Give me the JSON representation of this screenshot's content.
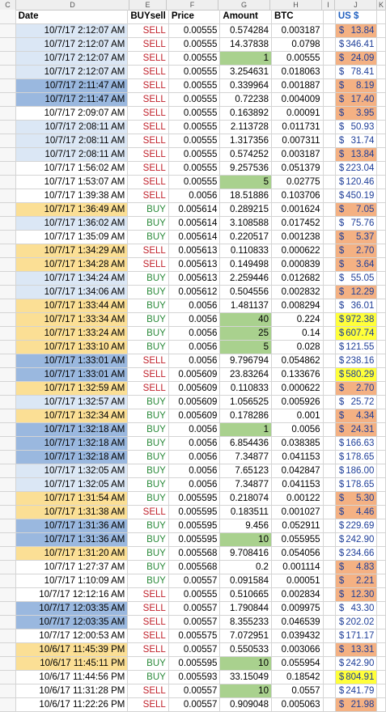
{
  "columns": [
    "C",
    "D",
    "E",
    "F",
    "G",
    "H",
    "I",
    "J",
    "K"
  ],
  "headers": {
    "date": "Date",
    "side": "BUYsell",
    "price": "Price",
    "amount": "Amount",
    "btc": "BTC",
    "usd": "US $"
  },
  "currency_symbol": "$",
  "fills": {
    "date_light_blue": "#dbe7f5",
    "date_medium_blue": "#9ab8df",
    "date_yellow": "#fbdf95",
    "amount_green": "#a9d18e",
    "usd_orange": "#f4b183",
    "usd_yellow": "#ffff3a",
    "sell_text": "#c0202a",
    "buy_text": "#2a8a3a"
  },
  "rows": [
    {
      "date": "10/7/17 2:12:07 AM",
      "side": "SELL",
      "price": "0.00555",
      "amount": "0.574284",
      "btc": "0.003187",
      "usd": "13.84",
      "dc": "L",
      "ac": "",
      "uc": "O"
    },
    {
      "date": "10/7/17 2:12:07 AM",
      "side": "SELL",
      "price": "0.00555",
      "amount": "14.37838",
      "btc": "0.0798",
      "usd": "346.41",
      "dc": "L",
      "ac": "",
      "uc": ""
    },
    {
      "date": "10/7/17 2:12:07 AM",
      "side": "SELL",
      "price": "0.00555",
      "amount": "1",
      "btc": "0.00555",
      "usd": "24.09",
      "dc": "L",
      "ac": "G",
      "uc": "O"
    },
    {
      "date": "10/7/17 2:12:07 AM",
      "side": "SELL",
      "price": "0.00555",
      "amount": "3.254631",
      "btc": "0.018063",
      "usd": "78.41",
      "dc": "L",
      "ac": "",
      "uc": ""
    },
    {
      "date": "10/7/17 2:11:47 AM",
      "side": "SELL",
      "price": "0.00555",
      "amount": "0.339964",
      "btc": "0.001887",
      "usd": "8.19",
      "dc": "M",
      "ac": "",
      "uc": "O"
    },
    {
      "date": "10/7/17 2:11:47 AM",
      "side": "SELL",
      "price": "0.00555",
      "amount": "0.72238",
      "btc": "0.004009",
      "usd": "17.40",
      "dc": "M",
      "ac": "",
      "uc": "O"
    },
    {
      "date": "10/7/17 2:09:07 AM",
      "side": "SELL",
      "price": "0.00555",
      "amount": "0.163892",
      "btc": "0.00091",
      "usd": "3.95",
      "dc": "",
      "ac": "",
      "uc": "O"
    },
    {
      "date": "10/7/17 2:08:11 AM",
      "side": "SELL",
      "price": "0.00555",
      "amount": "2.113728",
      "btc": "0.011731",
      "usd": "50.93",
      "dc": "L",
      "ac": "",
      "uc": ""
    },
    {
      "date": "10/7/17 2:08:11 AM",
      "side": "SELL",
      "price": "0.00555",
      "amount": "1.317356",
      "btc": "0.007311",
      "usd": "31.74",
      "dc": "L",
      "ac": "",
      "uc": ""
    },
    {
      "date": "10/7/17 2:08:11 AM",
      "side": "SELL",
      "price": "0.00555",
      "amount": "0.574252",
      "btc": "0.003187",
      "usd": "13.84",
      "dc": "L",
      "ac": "",
      "uc": "O"
    },
    {
      "date": "10/7/17 1:56:02 AM",
      "side": "SELL",
      "price": "0.00555",
      "amount": "9.257536",
      "btc": "0.051379",
      "usd": "223.04",
      "dc": "",
      "ac": "",
      "uc": ""
    },
    {
      "date": "10/7/17 1:53:07 AM",
      "side": "SELL",
      "price": "0.00555",
      "amount": "5",
      "btc": "0.02775",
      "usd": "120.46",
      "dc": "",
      "ac": "G",
      "uc": ""
    },
    {
      "date": "10/7/17 1:39:38 AM",
      "side": "SELL",
      "price": "0.0056",
      "amount": "18.51886",
      "btc": "0.103706",
      "usd": "450.19",
      "dc": "",
      "ac": "",
      "uc": ""
    },
    {
      "date": "10/7/17 1:36:49 AM",
      "side": "BUY",
      "price": "0.005614",
      "amount": "0.289215",
      "btc": "0.001624",
      "usd": "7.05",
      "dc": "Y",
      "ac": "",
      "uc": "O"
    },
    {
      "date": "10/7/17 1:36:02 AM",
      "side": "BUY",
      "price": "0.005614",
      "amount": "3.108588",
      "btc": "0.017452",
      "usd": "75.76",
      "dc": "L",
      "ac": "",
      "uc": ""
    },
    {
      "date": "10/7/17 1:35:09 AM",
      "side": "BUY",
      "price": "0.005614",
      "amount": "0.220517",
      "btc": "0.001238",
      "usd": "5.37",
      "dc": "",
      "ac": "",
      "uc": "O"
    },
    {
      "date": "10/7/17 1:34:29 AM",
      "side": "SELL",
      "price": "0.005613",
      "amount": "0.110833",
      "btc": "0.000622",
      "usd": "2.70",
      "dc": "Y",
      "ac": "",
      "uc": "O"
    },
    {
      "date": "10/7/17 1:34:28 AM",
      "side": "SELL",
      "price": "0.005613",
      "amount": "0.149498",
      "btc": "0.000839",
      "usd": "3.64",
      "dc": "Y",
      "ac": "",
      "uc": "O"
    },
    {
      "date": "10/7/17 1:34:24 AM",
      "side": "BUY",
      "price": "0.005613",
      "amount": "2.259446",
      "btc": "0.012682",
      "usd": "55.05",
      "dc": "L",
      "ac": "",
      "uc": ""
    },
    {
      "date": "10/7/17 1:34:06 AM",
      "side": "BUY",
      "price": "0.005612",
      "amount": "0.504556",
      "btc": "0.002832",
      "usd": "12.29",
      "dc": "L",
      "ac": "",
      "uc": "O"
    },
    {
      "date": "10/7/17 1:33:44 AM",
      "side": "BUY",
      "price": "0.0056",
      "amount": "1.481137",
      "btc": "0.008294",
      "usd": "36.01",
      "dc": "Y",
      "ac": "",
      "uc": ""
    },
    {
      "date": "10/7/17 1:33:34 AM",
      "side": "BUY",
      "price": "0.0056",
      "amount": "40",
      "btc": "0.224",
      "usd": "972.38",
      "dc": "Y",
      "ac": "G",
      "uc": "Y"
    },
    {
      "date": "10/7/17 1:33:24 AM",
      "side": "BUY",
      "price": "0.0056",
      "amount": "25",
      "btc": "0.14",
      "usd": "607.74",
      "dc": "Y",
      "ac": "G",
      "uc": "Y"
    },
    {
      "date": "10/7/17 1:33:10 AM",
      "side": "BUY",
      "price": "0.0056",
      "amount": "5",
      "btc": "0.028",
      "usd": "121.55",
      "dc": "Y",
      "ac": "G",
      "uc": ""
    },
    {
      "date": "10/7/17 1:33:01 AM",
      "side": "SELL",
      "price": "0.0056",
      "amount": "9.796794",
      "btc": "0.054862",
      "usd": "238.16",
      "dc": "M",
      "ac": "",
      "uc": ""
    },
    {
      "date": "10/7/17 1:33:01 AM",
      "side": "SELL",
      "price": "0.005609",
      "amount": "23.83264",
      "btc": "0.133676",
      "usd": "580.29",
      "dc": "M",
      "ac": "",
      "uc": "Y"
    },
    {
      "date": "10/7/17 1:32:59 AM",
      "side": "SELL",
      "price": "0.005609",
      "amount": "0.110833",
      "btc": "0.000622",
      "usd": "2.70",
      "dc": "Y",
      "ac": "",
      "uc": "O"
    },
    {
      "date": "10/7/17 1:32:57 AM",
      "side": "BUY",
      "price": "0.005609",
      "amount": "1.056525",
      "btc": "0.005926",
      "usd": "25.72",
      "dc": "L",
      "ac": "",
      "uc": ""
    },
    {
      "date": "10/7/17 1:32:34 AM",
      "side": "BUY",
      "price": "0.005609",
      "amount": "0.178286",
      "btc": "0.001",
      "usd": "4.34",
      "dc": "Y",
      "ac": "",
      "uc": "O"
    },
    {
      "date": "10/7/17 1:32:18 AM",
      "side": "BUY",
      "price": "0.0056",
      "amount": "1",
      "btc": "0.0056",
      "usd": "24.31",
      "dc": "M",
      "ac": "G",
      "uc": "O"
    },
    {
      "date": "10/7/17 1:32:18 AM",
      "side": "BUY",
      "price": "0.0056",
      "amount": "6.854436",
      "btc": "0.038385",
      "usd": "166.63",
      "dc": "M",
      "ac": "",
      "uc": ""
    },
    {
      "date": "10/7/17 1:32:18 AM",
      "side": "BUY",
      "price": "0.0056",
      "amount": "7.34877",
      "btc": "0.041153",
      "usd": "178.65",
      "dc": "M",
      "ac": "",
      "uc": ""
    },
    {
      "date": "10/7/17 1:32:05 AM",
      "side": "BUY",
      "price": "0.0056",
      "amount": "7.65123",
      "btc": "0.042847",
      "usd": "186.00",
      "dc": "L",
      "ac": "",
      "uc": ""
    },
    {
      "date": "10/7/17 1:32:05 AM",
      "side": "BUY",
      "price": "0.0056",
      "amount": "7.34877",
      "btc": "0.041153",
      "usd": "178.65",
      "dc": "L",
      "ac": "",
      "uc": ""
    },
    {
      "date": "10/7/17 1:31:54 AM",
      "side": "BUY",
      "price": "0.005595",
      "amount": "0.218074",
      "btc": "0.00122",
      "usd": "5.30",
      "dc": "Y",
      "ac": "",
      "uc": "O"
    },
    {
      "date": "10/7/17 1:31:38 AM",
      "side": "SELL",
      "price": "0.005595",
      "amount": "0.183511",
      "btc": "0.001027",
      "usd": "4.46",
      "dc": "Y",
      "ac": "",
      "uc": "O"
    },
    {
      "date": "10/7/17 1:31:36 AM",
      "side": "BUY",
      "price": "0.005595",
      "amount": "9.456",
      "btc": "0.052911",
      "usd": "229.69",
      "dc": "M",
      "ac": "",
      "uc": ""
    },
    {
      "date": "10/7/17 1:31:36 AM",
      "side": "BUY",
      "price": "0.005595",
      "amount": "10",
      "btc": "0.055955",
      "usd": "242.90",
      "dc": "M",
      "ac": "G",
      "uc": ""
    },
    {
      "date": "10/7/17 1:31:20 AM",
      "side": "BUY",
      "price": "0.005568",
      "amount": "9.708416",
      "btc": "0.054056",
      "usd": "234.66",
      "dc": "Y",
      "ac": "",
      "uc": ""
    },
    {
      "date": "10/7/17 1:27:37 AM",
      "side": "BUY",
      "price": "0.005568",
      "amount": "0.2",
      "btc": "0.001114",
      "usd": "4.83",
      "dc": "",
      "ac": "",
      "uc": "O"
    },
    {
      "date": "10/7/17 1:10:09 AM",
      "side": "BUY",
      "price": "0.00557",
      "amount": "0.091584",
      "btc": "0.00051",
      "usd": "2.21",
      "dc": "",
      "ac": "",
      "uc": "O"
    },
    {
      "date": "10/7/17 12:12:16 AM",
      "side": "SELL",
      "price": "0.00555",
      "amount": "0.510665",
      "btc": "0.002834",
      "usd": "12.30",
      "dc": "",
      "ac": "",
      "uc": "O"
    },
    {
      "date": "10/7/17 12:03:35 AM",
      "side": "SELL",
      "price": "0.00557",
      "amount": "1.790844",
      "btc": "0.009975",
      "usd": "43.30",
      "dc": "M",
      "ac": "",
      "uc": ""
    },
    {
      "date": "10/7/17 12:03:35 AM",
      "side": "SELL",
      "price": "0.00557",
      "amount": "8.355233",
      "btc": "0.046539",
      "usd": "202.02",
      "dc": "M",
      "ac": "",
      "uc": ""
    },
    {
      "date": "10/7/17 12:00:53 AM",
      "side": "SELL",
      "price": "0.005575",
      "amount": "7.072951",
      "btc": "0.039432",
      "usd": "171.17",
      "dc": "",
      "ac": "",
      "uc": ""
    },
    {
      "date": "10/6/17 11:45:39 PM",
      "side": "SELL",
      "price": "0.00557",
      "amount": "0.550533",
      "btc": "0.003066",
      "usd": "13.31",
      "dc": "Y",
      "ac": "",
      "uc": "O"
    },
    {
      "date": "10/6/17 11:45:11 PM",
      "side": "BUY",
      "price": "0.005595",
      "amount": "10",
      "btc": "0.055954",
      "usd": "242.90",
      "dc": "Y",
      "ac": "G",
      "uc": ""
    },
    {
      "date": "10/6/17 11:44:56 PM",
      "side": "BUY",
      "price": "0.005593",
      "amount": "33.15049",
      "btc": "0.18542",
      "usd": "804.91",
      "dc": "",
      "ac": "",
      "uc": "Y"
    },
    {
      "date": "10/6/17 11:31:28 PM",
      "side": "SELL",
      "price": "0.00557",
      "amount": "10",
      "btc": "0.0557",
      "usd": "241.79",
      "dc": "",
      "ac": "G",
      "uc": ""
    },
    {
      "date": "10/6/17 11:22:26 PM",
      "side": "SELL",
      "price": "0.00557",
      "amount": "0.909048",
      "btc": "0.005063",
      "usd": "21.98",
      "dc": "",
      "ac": "",
      "uc": "O"
    }
  ]
}
